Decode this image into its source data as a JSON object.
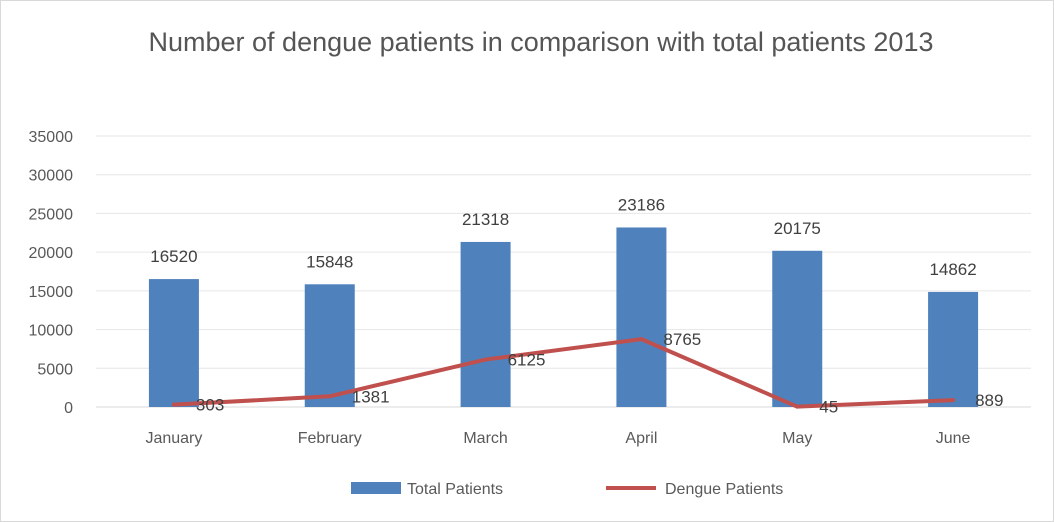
{
  "chart_data": {
    "type": "bar",
    "title": "Number of dengue patients in comparison with total patients 2013",
    "xlabel": "",
    "ylabel": "",
    "categories": [
      "January",
      "February",
      "March",
      "April",
      "May",
      "June"
    ],
    "ylim": [
      0,
      35000
    ],
    "yticks": [
      0,
      5000,
      10000,
      15000,
      20000,
      25000,
      30000,
      35000
    ],
    "grid": true,
    "legend_position": "bottom",
    "series": [
      {
        "name": "Total Patients",
        "type": "bar",
        "color": "#4f81bd",
        "values": [
          16520,
          15848,
          21318,
          23186,
          20175,
          14862
        ],
        "labels": [
          "16520",
          "15848",
          "21318",
          "23186",
          "20175",
          "14862"
        ]
      },
      {
        "name": "Dengue Patients",
        "type": "line",
        "color": "#c0504d",
        "values": [
          303,
          1381,
          6125,
          8765,
          45,
          889
        ],
        "labels": [
          "303",
          "1381",
          "6125",
          "8765",
          "45",
          "889"
        ]
      }
    ]
  }
}
